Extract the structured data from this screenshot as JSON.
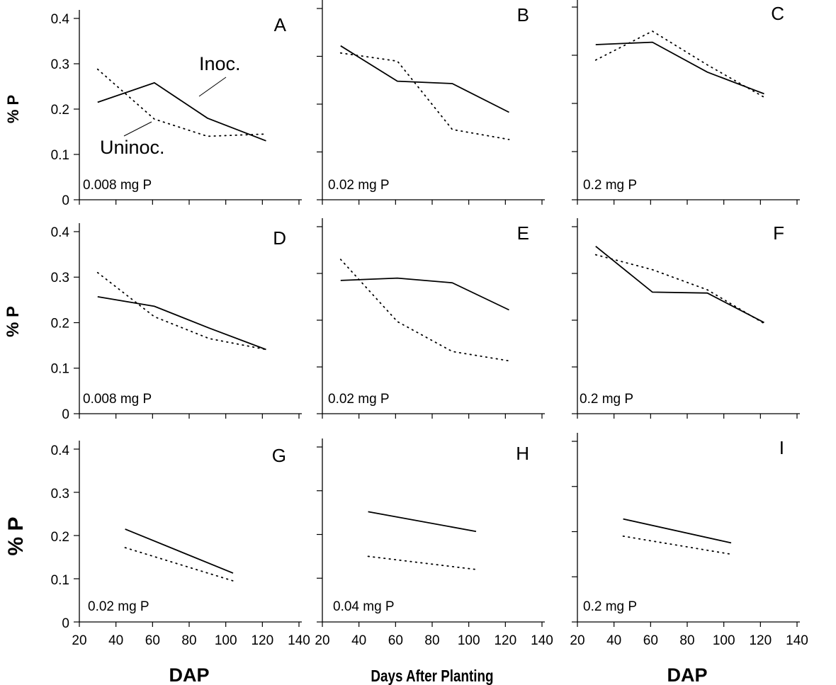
{
  "chart_data": [
    {
      "type": "line",
      "panel": "A",
      "annotation": "0.008 mg P",
      "ylabel": "% P",
      "xlabel": "",
      "xlim": [
        20,
        140
      ],
      "ylim": [
        0,
        0.4
      ],
      "y_ticks": [
        "0",
        "0.1",
        "0.2",
        "0.3",
        "0.4"
      ],
      "x_ticks": [],
      "legend_labels": [
        "Inoc.",
        "Uninoc."
      ],
      "series": [
        {
          "name": "Inoc.",
          "style": "solid",
          "x": [
            30,
            61,
            90,
            122
          ],
          "y": [
            0.215,
            0.258,
            0.18,
            0.13
          ]
        },
        {
          "name": "Uninoc.",
          "style": "dotted",
          "x": [
            30,
            61,
            90,
            122
          ],
          "y": [
            0.288,
            0.178,
            0.14,
            0.145
          ]
        }
      ]
    },
    {
      "type": "line",
      "panel": "B",
      "annotation": "0.02 mg P",
      "ylabel": "",
      "xlabel": "",
      "xlim": [
        20,
        140
      ],
      "ylim": [
        0,
        0.4
      ],
      "y_ticks": [
        "",
        "",
        "",
        "",
        ""
      ],
      "x_ticks": [],
      "series": [
        {
          "style": "solid",
          "x": [
            30,
            61,
            91,
            122
          ],
          "y": [
            0.322,
            0.248,
            0.243,
            0.183
          ]
        },
        {
          "style": "dotted",
          "x": [
            30,
            61,
            91,
            122
          ],
          "y": [
            0.307,
            0.29,
            0.147,
            0.126
          ]
        }
      ]
    },
    {
      "type": "line",
      "panel": "C",
      "annotation": "0.2 mg P",
      "ylabel": "",
      "xlabel": "",
      "xlim": [
        20,
        140
      ],
      "ylim": [
        0,
        0.4
      ],
      "y_ticks": [
        "",
        "",
        "",
        "",
        ""
      ],
      "x_ticks": [],
      "series": [
        {
          "style": "solid",
          "x": [
            30,
            61,
            91,
            122
          ],
          "y": [
            0.322,
            0.327,
            0.265,
            0.22
          ]
        },
        {
          "style": "dotted",
          "x": [
            30,
            61,
            91,
            122
          ],
          "y": [
            0.29,
            0.35,
            0.28,
            0.213
          ]
        }
      ]
    },
    {
      "type": "line",
      "panel": "D",
      "annotation": "0.008 mg P",
      "ylabel": "% P",
      "xlabel": "",
      "xlim": [
        20,
        140
      ],
      "ylim": [
        0,
        0.4
      ],
      "y_ticks": [
        "0",
        "0.1",
        "0.2",
        "0.3",
        "0.4"
      ],
      "x_ticks": [],
      "series": [
        {
          "style": "solid",
          "x": [
            30,
            61,
            91,
            122
          ],
          "y": [
            0.257,
            0.236,
            0.188,
            0.141
          ]
        },
        {
          "style": "dotted",
          "x": [
            30,
            61,
            91,
            122
          ],
          "y": [
            0.31,
            0.213,
            0.165,
            0.141
          ]
        }
      ]
    },
    {
      "type": "line",
      "panel": "E",
      "annotation": "0.02 mg P",
      "ylabel": "",
      "xlabel": "",
      "xlim": [
        20,
        140
      ],
      "ylim": [
        0,
        0.4
      ],
      "y_ticks": [
        "",
        "",
        "",
        "",
        ""
      ],
      "x_ticks": [],
      "series": [
        {
          "style": "solid",
          "x": [
            30,
            61,
            91,
            122
          ],
          "y": [
            0.285,
            0.29,
            0.28,
            0.222
          ]
        },
        {
          "style": "dotted",
          "x": [
            30,
            61,
            91,
            122
          ],
          "y": [
            0.33,
            0.197,
            0.133,
            0.113
          ]
        }
      ]
    },
    {
      "type": "line",
      "panel": "F",
      "annotation": "0.2 mg P",
      "ylabel": "",
      "xlabel": "",
      "xlim": [
        20,
        140
      ],
      "ylim": [
        0,
        0.4
      ],
      "y_ticks": [
        "",
        "",
        "",
        "",
        ""
      ],
      "x_ticks": [],
      "series": [
        {
          "style": "solid",
          "x": [
            30,
            61,
            91,
            122
          ],
          "y": [
            0.358,
            0.26,
            0.258,
            0.195
          ]
        },
        {
          "style": "dotted",
          "x": [
            30,
            61,
            91,
            122
          ],
          "y": [
            0.34,
            0.308,
            0.265,
            0.193
          ]
        }
      ]
    },
    {
      "type": "line",
      "panel": "G",
      "annotation": "0.02 mg P",
      "ylabel": "% P",
      "xlabel": "DAP",
      "xlim": [
        20,
        140
      ],
      "ylim": [
        0,
        0.4
      ],
      "y_ticks": [
        "0",
        "0.1",
        "0.2",
        "0.3",
        "0.4"
      ],
      "x_ticks": [
        "20",
        "40",
        "60",
        "80",
        "100",
        "120",
        "140"
      ],
      "series": [
        {
          "style": "solid",
          "x": [
            45,
            104
          ],
          "y": [
            0.215,
            0.113
          ]
        },
        {
          "style": "dotted",
          "x": [
            45,
            104
          ],
          "y": [
            0.172,
            0.095
          ]
        }
      ]
    },
    {
      "type": "line",
      "panel": "H",
      "annotation": "0.04 mg P",
      "ylabel": "",
      "xlabel": "Days After Planting",
      "xlim": [
        20,
        140
      ],
      "ylim": [
        0,
        0.4
      ],
      "y_ticks": [
        "",
        "",
        "",
        "",
        ""
      ],
      "x_ticks": [
        "20",
        "40",
        "60",
        "80",
        "100",
        "120",
        "140"
      ],
      "series": [
        {
          "style": "solid",
          "x": [
            45,
            104
          ],
          "y": [
            0.252,
            0.207
          ]
        },
        {
          "style": "dotted",
          "x": [
            45,
            104
          ],
          "y": [
            0.15,
            0.12
          ]
        }
      ]
    },
    {
      "type": "line",
      "panel": "I",
      "annotation": "0.2 mg P",
      "ylabel": "",
      "xlabel": "DAP",
      "xlim": [
        20,
        140
      ],
      "ylim": [
        0,
        0.4
      ],
      "y_ticks": [
        "",
        "",
        "",
        "",
        ""
      ],
      "x_ticks": [
        "20",
        "40",
        "60",
        "80",
        "100",
        "120",
        "140"
      ],
      "series": [
        {
          "style": "solid",
          "x": [
            45,
            104
          ],
          "y": [
            0.228,
            0.175
          ]
        },
        {
          "style": "dotted",
          "x": [
            45,
            104
          ],
          "y": [
            0.19,
            0.15
          ]
        }
      ]
    }
  ]
}
